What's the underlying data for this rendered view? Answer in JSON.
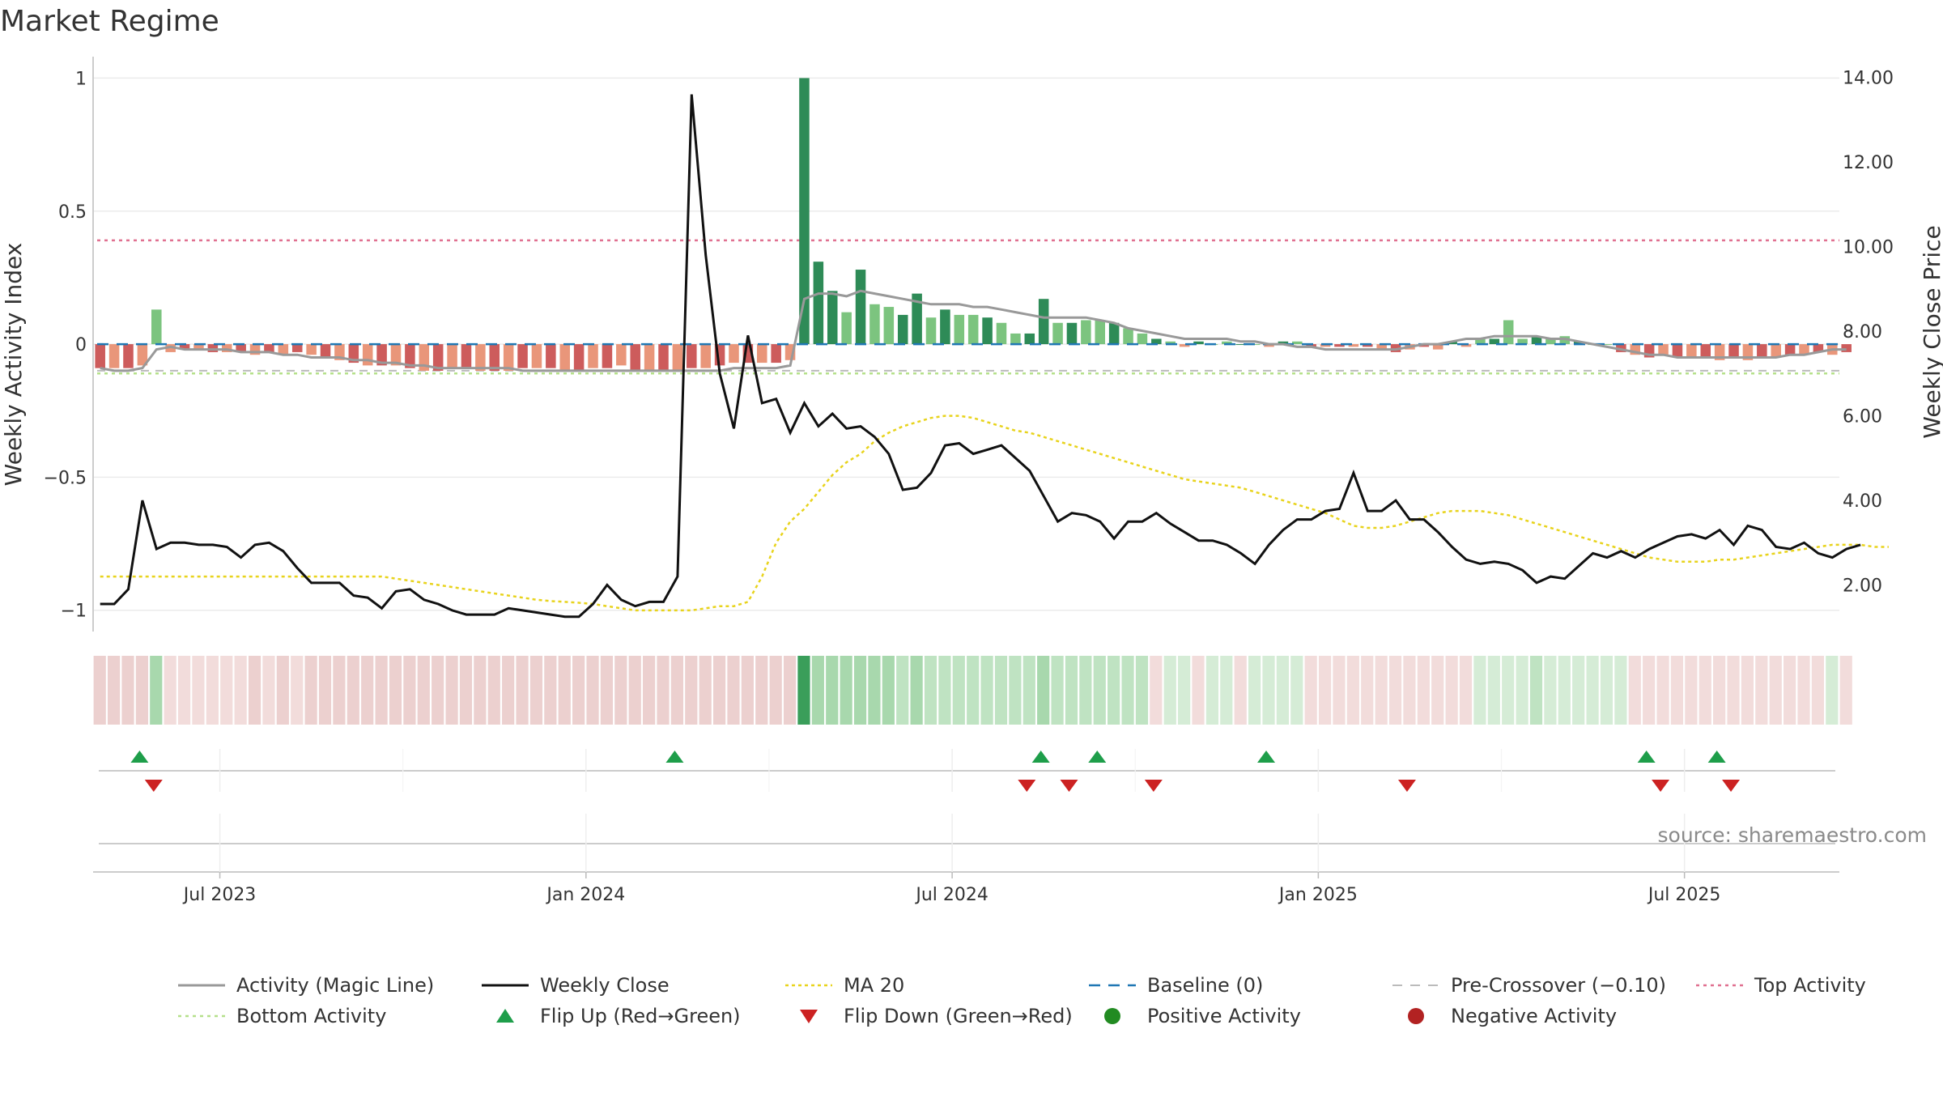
{
  "title": "Market Regime",
  "source": "source: sharemaestro.com",
  "chart_data": {
    "type": "bar",
    "title": "Market Regime",
    "y_left_label": "Weekly Activity Index",
    "y_right_label": "Weekly Close Price",
    "y_left_ticks": [
      "1",
      "0.5",
      "0",
      "−0.5",
      "−1"
    ],
    "y_left_tick_values": [
      1,
      0.5,
      0,
      -0.5,
      -1
    ],
    "y_left_lim": [
      -1.08,
      1.05
    ],
    "y_right_ticks": [
      "14.00",
      "12.00",
      "10.00",
      "8.00",
      "6.00",
      "4.00",
      "2.00"
    ],
    "y_right_tick_values": [
      14,
      12,
      10,
      8,
      6,
      4,
      2
    ],
    "y_right_lim": [
      0.9,
      14.3
    ],
    "x_ticks": [
      {
        "label": "Jul 2023",
        "week": 9
      },
      {
        "label": "Jan 2024",
        "week": 35
      },
      {
        "label": "Jul 2024",
        "week": 61
      },
      {
        "label": "Jan 2025",
        "week": 87
      },
      {
        "label": "Jul 2025",
        "week": 113
      }
    ],
    "x_lim": [
      0,
      124
    ],
    "reference_lines": {
      "top_activity": 0.39,
      "baseline": 0,
      "pre_crossover": -0.1,
      "bottom_activity": -0.11
    },
    "weekly_activity": [
      -0.09,
      -0.09,
      -0.09,
      -0.08,
      0.13,
      -0.03,
      -0.02,
      -0.02,
      -0.03,
      -0.03,
      -0.03,
      -0.04,
      -0.03,
      -0.04,
      -0.03,
      -0.04,
      -0.05,
      -0.06,
      -0.07,
      -0.08,
      -0.08,
      -0.08,
      -0.09,
      -0.1,
      -0.1,
      -0.09,
      -0.09,
      -0.1,
      -0.1,
      -0.1,
      -0.09,
      -0.09,
      -0.09,
      -0.1,
      -0.1,
      -0.09,
      -0.09,
      -0.08,
      -0.1,
      -0.1,
      -0.1,
      -0.1,
      -0.09,
      -0.09,
      -0.08,
      -0.07,
      -0.07,
      -0.07,
      -0.07,
      -0.06,
      1.0,
      0.31,
      0.2,
      0.12,
      0.28,
      0.15,
      0.14,
      0.11,
      0.19,
      0.1,
      0.13,
      0.11,
      0.11,
      0.1,
      0.08,
      0.04,
      0.04,
      0.17,
      0.08,
      0.08,
      0.09,
      0.09,
      0.08,
      0.06,
      0.04,
      0.02,
      0.01,
      -0.01,
      0.01,
      0.0,
      0.01,
      0.0,
      0.0,
      -0.01,
      0.01,
      0.01,
      -0.01,
      -0.01,
      -0.01,
      -0.01,
      -0.01,
      -0.02,
      -0.03,
      -0.02,
      -0.01,
      -0.02,
      0.01,
      -0.01,
      0.02,
      0.02,
      0.09,
      0.02,
      0.03,
      0.02,
      0.03,
      0.01,
      0.0,
      0.0,
      -0.03,
      -0.04,
      -0.05,
      -0.04,
      -0.05,
      -0.05,
      -0.05,
      -0.06,
      -0.05,
      -0.06,
      -0.05,
      -0.05,
      -0.04,
      -0.04,
      -0.03,
      -0.04,
      -0.03
    ],
    "magic_line": [
      -0.09,
      -0.1,
      -0.1,
      -0.09,
      -0.02,
      -0.01,
      -0.02,
      -0.02,
      -0.02,
      -0.02,
      -0.03,
      -0.03,
      -0.03,
      -0.04,
      -0.04,
      -0.05,
      -0.05,
      -0.05,
      -0.06,
      -0.06,
      -0.07,
      -0.07,
      -0.08,
      -0.08,
      -0.09,
      -0.09,
      -0.09,
      -0.09,
      -0.09,
      -0.09,
      -0.1,
      -0.1,
      -0.1,
      -0.1,
      -0.1,
      -0.1,
      -0.1,
      -0.1,
      -0.1,
      -0.1,
      -0.1,
      -0.1,
      -0.1,
      -0.1,
      -0.1,
      -0.09,
      -0.09,
      -0.09,
      -0.09,
      -0.08,
      0.17,
      0.19,
      0.19,
      0.18,
      0.2,
      0.19,
      0.18,
      0.17,
      0.16,
      0.15,
      0.15,
      0.15,
      0.14,
      0.14,
      0.13,
      0.12,
      0.11,
      0.1,
      0.1,
      0.1,
      0.1,
      0.09,
      0.08,
      0.06,
      0.05,
      0.04,
      0.03,
      0.02,
      0.02,
      0.02,
      0.02,
      0.01,
      0.01,
      0.0,
      0.0,
      -0.01,
      -0.01,
      -0.02,
      -0.02,
      -0.02,
      -0.02,
      -0.02,
      -0.02,
      -0.01,
      0.0,
      0.0,
      0.01,
      0.02,
      0.02,
      0.03,
      0.03,
      0.03,
      0.03,
      0.02,
      0.02,
      0.01,
      0.0,
      -0.01,
      -0.02,
      -0.03,
      -0.04,
      -0.04,
      -0.05,
      -0.05,
      -0.05,
      -0.05,
      -0.05,
      -0.05,
      -0.05,
      -0.05,
      -0.04,
      -0.04,
      -0.03,
      -0.02,
      -0.02
    ],
    "weekly_close": [
      1.55,
      1.55,
      1.9,
      4.0,
      2.85,
      3.0,
      3.0,
      2.95,
      2.95,
      2.9,
      2.65,
      2.95,
      3.0,
      2.8,
      2.4,
      2.05,
      2.05,
      2.05,
      1.75,
      1.7,
      1.45,
      1.85,
      1.9,
      1.65,
      1.55,
      1.4,
      1.3,
      1.3,
      1.3,
      1.45,
      1.4,
      1.35,
      1.3,
      1.25,
      1.25,
      1.55,
      2.0,
      1.65,
      1.5,
      1.6,
      1.6,
      2.2,
      13.6,
      9.8,
      7.0,
      5.7,
      7.9,
      6.3,
      6.4,
      5.6,
      6.3,
      5.75,
      6.05,
      5.7,
      5.75,
      5.5,
      5.1,
      4.25,
      4.3,
      4.65,
      5.3,
      5.35,
      5.1,
      5.2,
      5.3,
      5.0,
      4.7,
      4.1,
      3.5,
      3.7,
      3.65,
      3.5,
      3.1,
      3.5,
      3.5,
      3.7,
      3.45,
      3.25,
      3.05,
      3.05,
      2.95,
      2.75,
      2.5,
      2.95,
      3.3,
      3.55,
      3.55,
      3.75,
      3.8,
      4.65,
      3.75,
      3.75,
      4.0,
      3.55,
      3.55,
      3.25,
      2.9,
      2.6,
      2.5,
      2.55,
      2.5,
      2.35,
      2.05,
      2.2,
      2.15,
      2.45,
      2.75,
      2.65,
      2.8,
      2.65,
      2.85,
      3.0,
      3.15,
      3.2,
      3.1,
      3.3,
      2.95,
      3.4,
      3.3,
      2.9,
      2.85,
      3.0,
      2.75,
      2.65,
      2.85,
      2.95
    ],
    "ma20": [
      2.2,
      2.2,
      2.2,
      2.2,
      2.2,
      2.2,
      2.2,
      2.2,
      2.2,
      2.2,
      2.2,
      2.2,
      2.2,
      2.2,
      2.2,
      2.2,
      2.2,
      2.2,
      2.2,
      2.2,
      2.2,
      2.15,
      2.1,
      2.05,
      2.0,
      1.95,
      1.9,
      1.85,
      1.8,
      1.75,
      1.7,
      1.65,
      1.62,
      1.6,
      1.58,
      1.55,
      1.5,
      1.45,
      1.4,
      1.4,
      1.4,
      1.4,
      1.4,
      1.45,
      1.5,
      1.5,
      1.6,
      2.2,
      3.0,
      3.5,
      3.8,
      4.2,
      4.6,
      4.9,
      5.1,
      5.4,
      5.6,
      5.75,
      5.85,
      5.95,
      6.0,
      6.0,
      5.95,
      5.85,
      5.75,
      5.65,
      5.6,
      5.5,
      5.4,
      5.3,
      5.2,
      5.1,
      5.0,
      4.9,
      4.8,
      4.7,
      4.6,
      4.5,
      4.45,
      4.4,
      4.35,
      4.3,
      4.2,
      4.1,
      4.0,
      3.9,
      3.8,
      3.7,
      3.55,
      3.4,
      3.35,
      3.35,
      3.4,
      3.5,
      3.6,
      3.7,
      3.75,
      3.75,
      3.75,
      3.7,
      3.65,
      3.55,
      3.45,
      3.35,
      3.25,
      3.15,
      3.05,
      2.95,
      2.85,
      2.75,
      2.65,
      2.6,
      2.55,
      2.55,
      2.55,
      2.6,
      2.6,
      2.65,
      2.7,
      2.75,
      2.8,
      2.85,
      2.9,
      2.95,
      2.95,
      2.95,
      2.9,
      2.9
    ],
    "regime_bar_intensity": [
      -0.4,
      -0.4,
      -0.4,
      -0.4,
      0.45,
      -0.3,
      -0.3,
      -0.3,
      -0.3,
      -0.3,
      -0.3,
      -0.35,
      -0.3,
      -0.35,
      -0.3,
      -0.35,
      -0.35,
      -0.35,
      -0.35,
      -0.4,
      -0.4,
      -0.4,
      -0.4,
      -0.4,
      -0.4,
      -0.4,
      -0.4,
      -0.4,
      -0.4,
      -0.4,
      -0.4,
      -0.4,
      -0.4,
      -0.4,
      -0.4,
      -0.4,
      -0.4,
      -0.35,
      -0.4,
      -0.4,
      -0.4,
      -0.4,
      -0.4,
      -0.4,
      -0.35,
      -0.35,
      -0.35,
      -0.35,
      -0.35,
      -0.35,
      1.0,
      0.55,
      0.5,
      0.45,
      0.5,
      0.45,
      0.45,
      0.4,
      0.45,
      0.4,
      0.4,
      0.4,
      0.4,
      0.4,
      0.4,
      0.35,
      0.35,
      0.45,
      0.35,
      0.35,
      0.35,
      0.35,
      0.35,
      0.35,
      0.35,
      -0.3,
      0.3,
      0.3,
      -0.3,
      0.3,
      0.3,
      -0.3,
      0.3,
      0.3,
      0.3,
      0.3,
      -0.3,
      -0.3,
      -0.3,
      -0.3,
      -0.3,
      -0.3,
      -0.3,
      -0.3,
      -0.3,
      -0.3,
      -0.3,
      -0.3,
      0.3,
      0.3,
      0.3,
      0.3,
      0.35,
      0.3,
      0.3,
      0.3,
      0.3,
      0.3,
      0.3,
      -0.3,
      -0.3,
      -0.3,
      -0.3,
      -0.3,
      -0.3,
      -0.3,
      -0.3,
      -0.3,
      -0.3,
      -0.3,
      -0.3,
      -0.3,
      -0.3,
      0.3,
      -0.3
    ],
    "flip_up_weeks": [
      3.3,
      41.3,
      67.3,
      71.3,
      83.3,
      110.3,
      115.3
    ],
    "flip_down_weeks": [
      4.3,
      66.3,
      69.3,
      75.3,
      93.3,
      111.3,
      116.3
    ],
    "legend": [
      {
        "label": "Activity (Magic Line)",
        "style": "solid-gray"
      },
      {
        "label": "Weekly Close",
        "style": "solid-black"
      },
      {
        "label": "MA 20",
        "style": "dotted-yellow"
      },
      {
        "label": "Baseline (0)",
        "style": "dashed-blue"
      },
      {
        "label": "Pre-Crossover (−0.10)",
        "style": "dashed-lightgray"
      },
      {
        "label": "Top Activity",
        "style": "dotted-pink"
      },
      {
        "label": "Bottom Activity",
        "style": "dotted-lightgreen"
      },
      {
        "label": "Flip Up (Red→Green)",
        "style": "triangle-up-green"
      },
      {
        "label": "Flip Down (Green→Red)",
        "style": "triangle-down-red"
      },
      {
        "label": "Positive Activity",
        "style": "dot-green"
      },
      {
        "label": "Negative Activity",
        "style": "dot-red"
      }
    ],
    "legend_placement": "bottom",
    "colors": {
      "strong_green": "#2e8b57",
      "light_green": "#7cc47f",
      "strong_red": "#cd5c5c",
      "light_red": "#e9967a",
      "close": "#111111",
      "magic": "#999999",
      "ma20": "#e8d31c",
      "baseline": "#1f77b4",
      "top": "#e07090",
      "bottom": "#b5e08a",
      "flip_up": "#1e9e4a",
      "flip_down": "#cc2222",
      "positive": "#228b22",
      "negative": "#b22222"
    }
  }
}
